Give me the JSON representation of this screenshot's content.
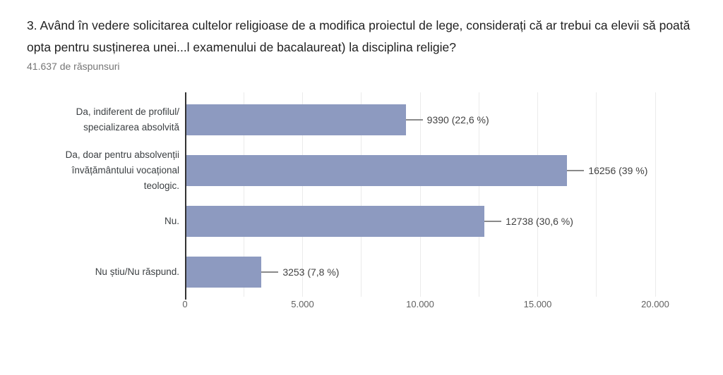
{
  "question": {
    "title": "3. Având în vedere solicitarea cultelor religioase de a modifica proiectul de lege, considerați că ar trebui ca elevii să poată opta pentru susținerea unei...l examenului de bacalaureat) la disciplina religie?",
    "response_count": "41.637 de răspunsuri"
  },
  "colors": {
    "bar": "#8D9AC0",
    "axis": "#333333",
    "gridline": "#ebebeb",
    "leader": "#8a8a8a",
    "title_text": "#212121",
    "subtitle_text": "#757575",
    "category_text": "#3c4043",
    "value_text": "#424242",
    "tick_text": "#616161",
    "background": "#ffffff"
  },
  "chart_data": {
    "type": "bar",
    "orientation": "horizontal",
    "title": "3. Având în vedere solicitarea cultelor religioase de a modifica proiectul de lege, considerați că ar trebui ca elevii să poată opta pentru susținerea unei...l examenului de bacalaureat) la disciplina religie?",
    "subtitle": "41.637 de răspunsuri",
    "categories": [
      "Da, indiferent de profilul/ specializarea absolvită",
      "Da, doar pentru absolvenții învățământului vocațional teologic.",
      "Nu.",
      "Nu știu/Nu răspund."
    ],
    "category_lines": [
      [
        "Da, indiferent de profilul/",
        "specializarea absolvită"
      ],
      [
        "Da, doar pentru absolvenții",
        "învățământului vocațional",
        "teologic."
      ],
      [
        "Nu."
      ],
      [
        "Nu știu/Nu răspund."
      ]
    ],
    "values": [
      9390,
      16256,
      12738,
      3253
    ],
    "percentages": [
      22.6,
      39,
      30.6,
      7.8
    ],
    "value_labels": [
      "9390 (22,6 %)",
      "16256 (39 %)",
      "12738 (30,6 %)",
      "3253 (7,8 %)"
    ],
    "xlim": [
      0,
      20000
    ],
    "x_ticks": [
      {
        "value": 0,
        "label": "0"
      },
      {
        "value": 5000,
        "label": "5.000"
      },
      {
        "value": 10000,
        "label": "10.000"
      },
      {
        "value": 15000,
        "label": "15.000"
      },
      {
        "value": 20000,
        "label": "20.000"
      }
    ],
    "gridline_step": 2500,
    "grid": "vertical",
    "legend": "none",
    "xlabel": "",
    "ylabel": ""
  }
}
